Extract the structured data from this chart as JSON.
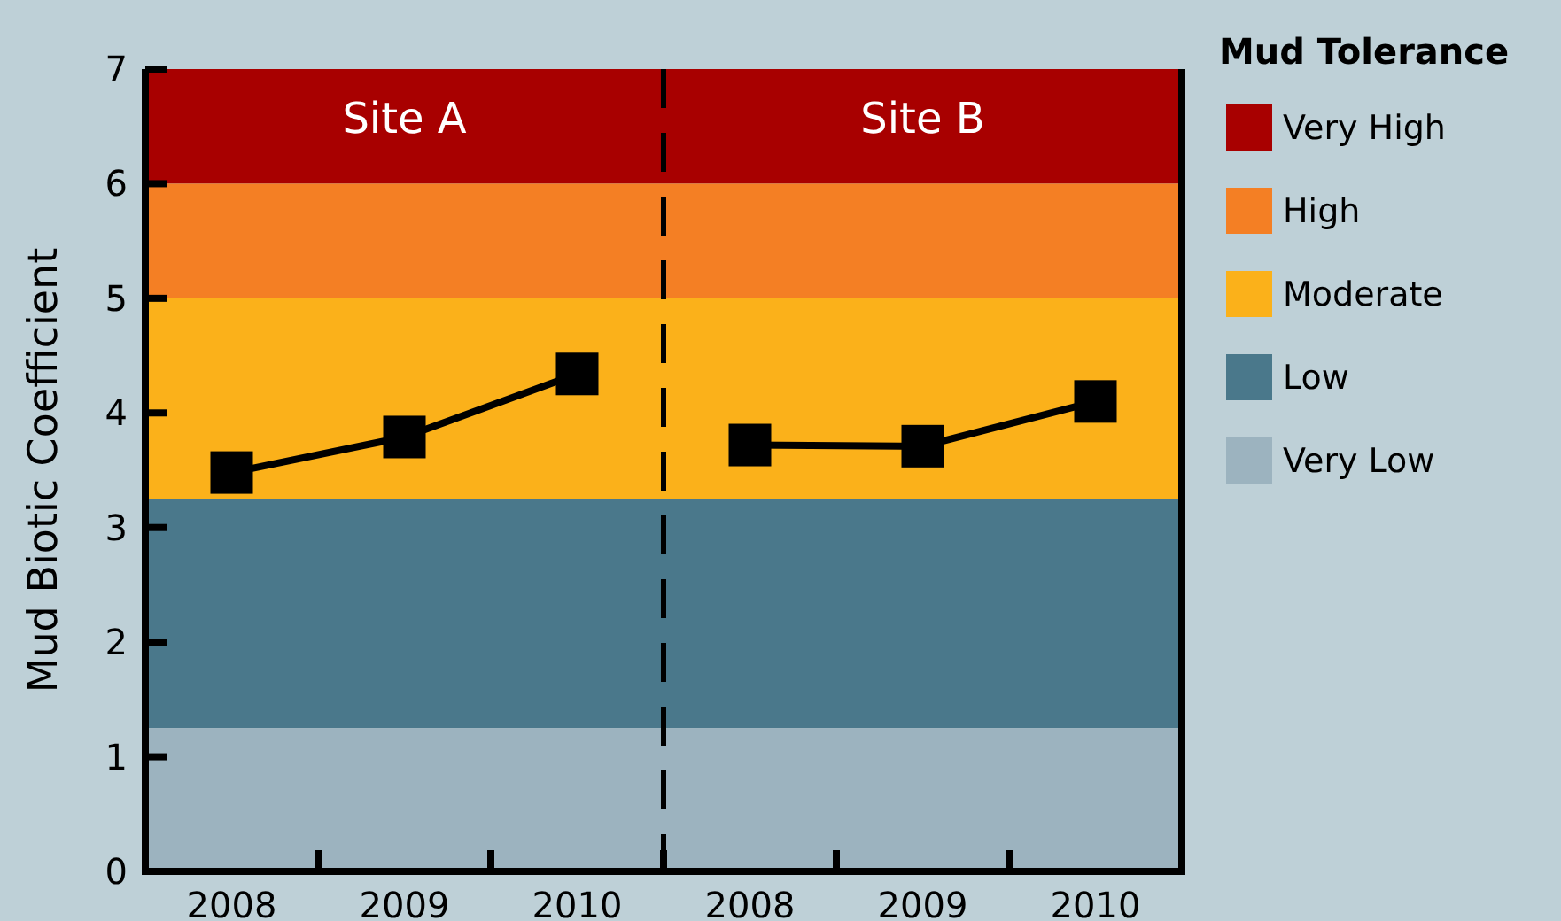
{
  "chart_data": {
    "type": "line",
    "ylabel": "Mud Biotic Coefficient",
    "legend_title": "Mud Tolerance",
    "legend": "right",
    "marker": "square",
    "line_style": "solid",
    "categories": [
      "2008",
      "2009",
      "2010",
      "2008",
      "2009",
      "2010"
    ],
    "series": [
      {
        "color": "#000000",
        "values": [
          3.48,
          3.79,
          4.34,
          null,
          null,
          null
        ]
      },
      {
        "color": "#000000",
        "values": [
          null,
          null,
          null,
          3.72,
          3.71,
          4.1
        ]
      }
    ],
    "ylim": [
      0,
      7
    ],
    "yticks": [
      0,
      1,
      2,
      3,
      4,
      5,
      6,
      7
    ],
    "bands": [
      {
        "axis": "y",
        "from": 6,
        "to": 7,
        "label": "Very High",
        "color": "#a80000"
      },
      {
        "axis": "y",
        "from": 5,
        "to": 6,
        "label": "High",
        "color": "#f47f24"
      },
      {
        "axis": "y",
        "from": 3.25,
        "to": 5,
        "label": "Moderate",
        "color": "#fbb11a"
      },
      {
        "axis": "y",
        "from": 1.25,
        "to": 3.25,
        "label": "Low",
        "color": "#4a788b"
      },
      {
        "axis": "y",
        "from": 0,
        "to": 1.25,
        "label": "Very Low",
        "color": "#9cb3bf"
      }
    ],
    "annotations": [
      "Site A",
      "Site B"
    ]
  }
}
